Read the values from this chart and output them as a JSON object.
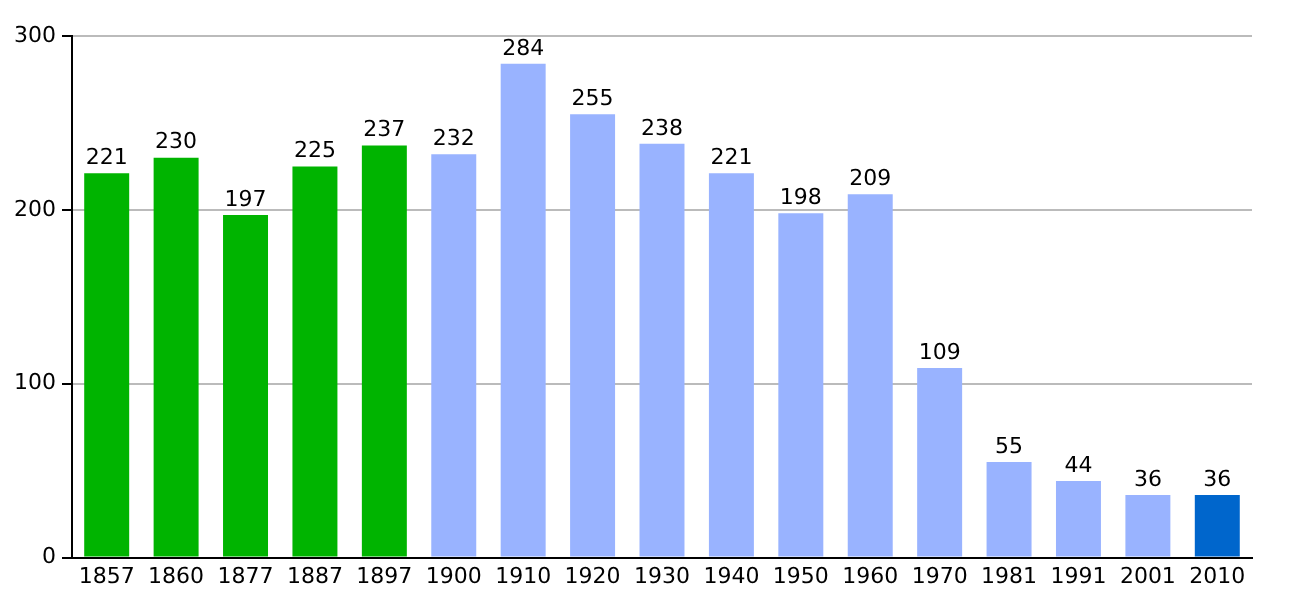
{
  "chart_data": {
    "type": "bar",
    "categories": [
      "1857",
      "1860",
      "1877",
      "1887",
      "1897",
      "1900",
      "1910",
      "1920",
      "1930",
      "1940",
      "1950",
      "1960",
      "1970",
      "1981",
      "1991",
      "2001",
      "2010"
    ],
    "values": [
      221,
      230,
      197,
      225,
      237,
      232,
      284,
      255,
      238,
      221,
      198,
      209,
      109,
      55,
      44,
      36,
      36
    ],
    "colors": [
      "#00b400",
      "#00b400",
      "#00b400",
      "#00b400",
      "#00b400",
      "#99b3ff",
      "#99b3ff",
      "#99b3ff",
      "#99b3ff",
      "#99b3ff",
      "#99b3ff",
      "#99b3ff",
      "#99b3ff",
      "#99b3ff",
      "#99b3ff",
      "#99b3ff",
      "#0066cc"
    ],
    "ylim": [
      0,
      300
    ],
    "yticks": [
      0,
      100,
      200,
      300
    ],
    "grid": "y",
    "data_labels": true
  }
}
